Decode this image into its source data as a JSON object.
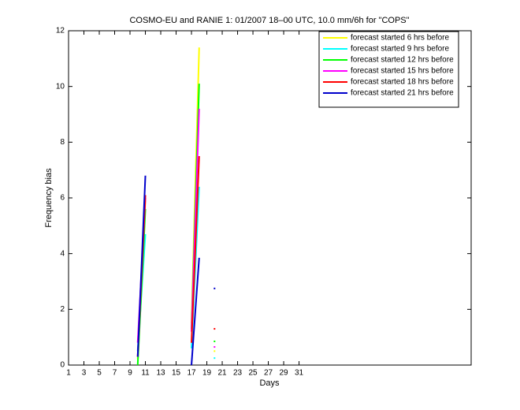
{
  "chart_data": {
    "type": "line",
    "title": "COSMO-EU and RANIE 1: 01/2007 18–00 UTC, 10.0 mm/6h for \"COPS\"",
    "xlabel": "Days",
    "ylabel": "Frequency bias",
    "x": [
      10,
      11,
      12,
      17,
      18,
      19,
      20
    ],
    "series": [
      {
        "name": "forecast started 6 hrs before",
        "color": "#ffff00",
        "values": [
          0.2,
          5.9,
          null,
          1.5,
          11.4,
          null,
          0.5
        ]
      },
      {
        "name": "forecast started 9 hrs before",
        "color": "#00ffff",
        "values": [
          0.5,
          4.7,
          null,
          0.6,
          6.4,
          null,
          0.25
        ]
      },
      {
        "name": "forecast started 12 hrs before",
        "color": "#00ff00",
        "values": [
          0.0,
          5.6,
          null,
          1.3,
          10.1,
          null,
          0.85
        ]
      },
      {
        "name": "forecast started 15 hrs before",
        "color": "#ff00ff",
        "values": [
          0.8,
          6.0,
          null,
          1.2,
          9.2,
          null,
          0.65
        ]
      },
      {
        "name": "forecast started 18 hrs before",
        "color": "#ff0000",
        "values": [
          0.3,
          6.1,
          null,
          0.8,
          7.5,
          null,
          1.3
        ]
      },
      {
        "name": "forecast started 21 hrs before",
        "color": "#0000cc",
        "values": [
          0.3,
          6.8,
          null,
          0.0,
          3.85,
          null,
          2.75
        ]
      }
    ],
    "xlim": [
      1,
      53.4
    ],
    "ylim": [
      0,
      12
    ],
    "xticks": [
      1,
      3,
      5,
      7,
      9,
      11,
      13,
      15,
      17,
      19,
      21,
      23,
      25,
      27,
      29,
      31
    ],
    "yticks": [
      0,
      2,
      4,
      6,
      8,
      10,
      12
    ],
    "grid": false,
    "legend": "upper right"
  }
}
